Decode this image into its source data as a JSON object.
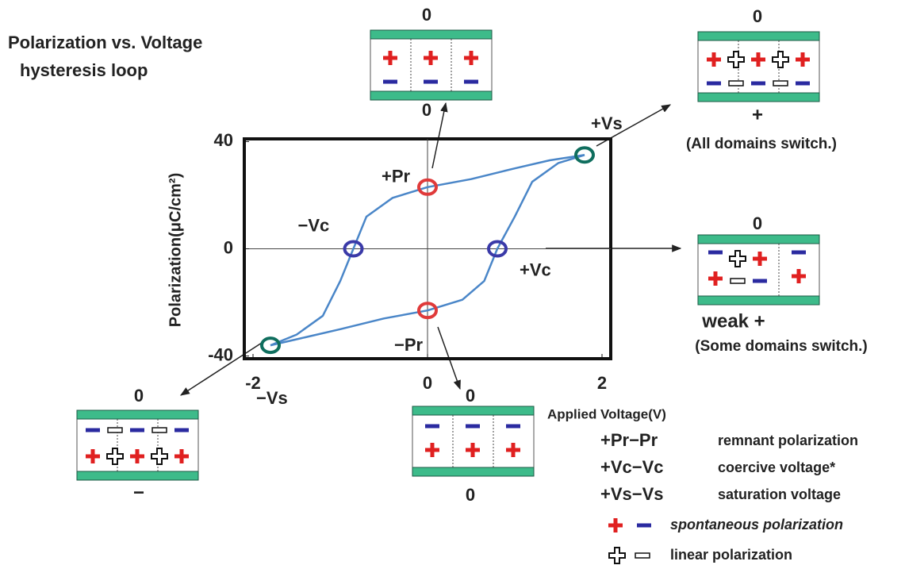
{
  "title": [
    "Polarization vs.  Voltage",
    "hysteresis loop"
  ],
  "chart_data": {
    "type": "line",
    "x_label": "Applied Voltage(V)",
    "y_label": "Polarization(μC/cm²)",
    "xlim": [
      -2.1,
      2.1
    ],
    "ylim": [
      -41,
      41
    ],
    "xticks": [
      -2,
      0,
      2
    ],
    "yticks": [
      -40,
      0,
      40
    ],
    "series": [
      {
        "color": "#4a86c8",
        "x": [
          1.8,
          1.4,
          1,
          0.5,
          0,
          -0.4,
          -0.7,
          -0.85,
          -1,
          -1.2,
          -1.5,
          -1.8
        ],
        "values": [
          35,
          33,
          30,
          26,
          23,
          19,
          12,
          0,
          -12,
          -25,
          -32,
          -36
        ]
      },
      {
        "color": "#4a86c8",
        "x": [
          -1.8,
          -1.4,
          -1,
          -0.5,
          0,
          0.4,
          0.65,
          0.8,
          1,
          1.2,
          1.5,
          1.8
        ],
        "values": [
          -36,
          -33,
          -30,
          -26,
          -23,
          -19,
          -12,
          0,
          12,
          25,
          32,
          35
        ]
      }
    ],
    "points": [
      {
        "label": "+Vs",
        "x": 1.8,
        "y": 35,
        "color": "#0f6e5e"
      },
      {
        "label": "+Pr",
        "x": 0,
        "y": 23,
        "color": "#e03a3a"
      },
      {
        "label": "−Vc",
        "x": -0.85,
        "y": 0,
        "color": "#3a3aa8"
      },
      {
        "label": "+Vc",
        "x": 0.8,
        "y": 0,
        "color": "#3a3aa8"
      },
      {
        "label": "−Pr",
        "x": 0,
        "y": -23,
        "color": "#e03a3a"
      },
      {
        "label": "−Vs",
        "x": -1.8,
        "y": -36,
        "color": "#0f6e5e"
      }
    ]
  },
  "panels": [
    {
      "top": "0",
      "bottom": "0"
    },
    {
      "top": "0",
      "bottom": "+",
      "note": "(All domains switch.)"
    },
    {
      "top": "0",
      "bottom": "weak +",
      "note": "(Some domains switch.)"
    },
    {
      "top": "0",
      "bottom": "−"
    },
    {
      "top": "0",
      "bottom": "0"
    }
  ],
  "legend": [
    {
      "symbol": "+Pr−Pr",
      "text": "remnant polarization",
      "color": "#e03a3a"
    },
    {
      "symbol": "+Vc−Vc",
      "text": "coercive voltage*",
      "color": "#3a3aa8"
    },
    {
      "symbol": "+Vs−Vs",
      "text": "saturation voltage",
      "color": "#0f6e5e"
    },
    {
      "text": "spontaneous polarization"
    },
    {
      "text": "linear polarization"
    }
  ]
}
